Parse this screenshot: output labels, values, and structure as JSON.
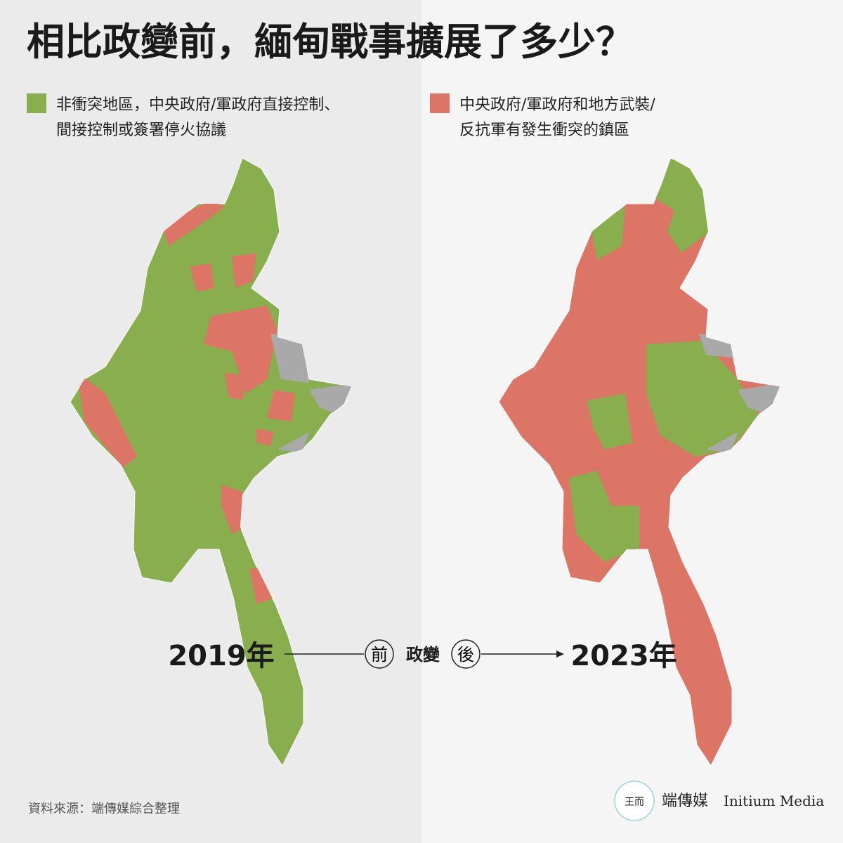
{
  "title": "相比政變前，緬甸戰事擴展了多少？",
  "legend": [
    {
      "lines": [
        "非衝突地區，中央政府/軍政府直接控制、",
        "間接控制或簽署停火協議"
      ],
      "color": "#88ae4e"
    },
    {
      "lines": [
        "中央政府/軍政府和地方武裝/",
        "反抗軍有發生衝突的鎮區"
      ],
      "color": "#dc7565"
    }
  ],
  "maps": [
    {
      "label": "2019年"
    },
    {
      "label": "2023年"
    }
  ],
  "timeline": {
    "before": "前",
    "event": "政變",
    "after": "後"
  },
  "source": "資料來源：端傳媒綜合整理",
  "logo": {
    "name": "端傳媒",
    "english": "Initium Media"
  }
}
